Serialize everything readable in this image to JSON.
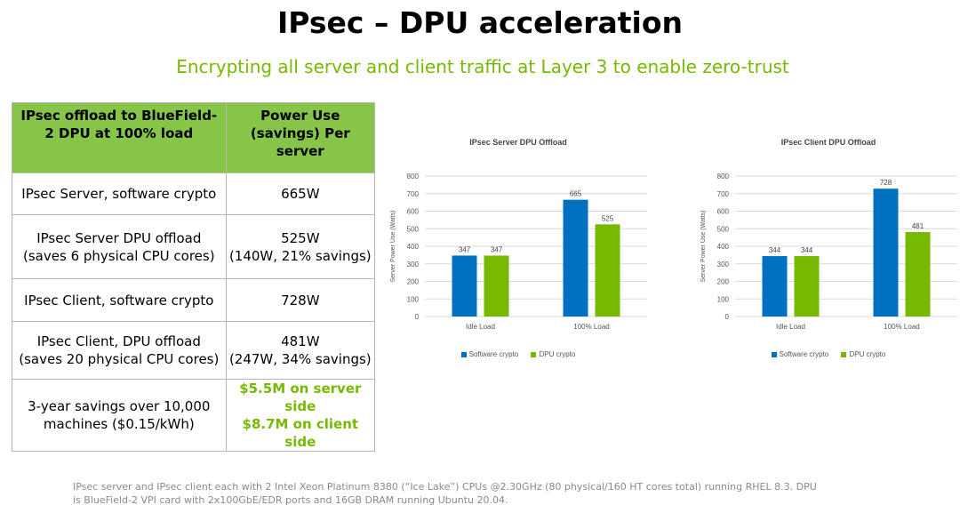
{
  "title": "IPsec – DPU acceleration",
  "subtitle": "Encrypting all server and client traffic at Layer 3 to enable zero-trust",
  "table": {
    "header_col1": "IPsec offload to BlueField-2 DPU at  100% load",
    "header_col2": "Power Use (savings) Per server",
    "rows": [
      {
        "label": "IPsec Server, software crypto",
        "value": "665W"
      },
      {
        "label_l1": "IPsec Server DPU offload",
        "label_l2": "(saves 6 physical CPU cores)",
        "value_l1": "525W",
        "value_l2": "(140W, 21% savings)"
      },
      {
        "label": "IPsec Client, software crypto",
        "value": "728W"
      },
      {
        "label_l1": "IPsec Client, DPU offload",
        "label_l2": "(saves 20 physical CPU cores)",
        "value_l1": "481W",
        "value_l2": "(247W, 34% savings)"
      },
      {
        "label_l1": "3-year savings over 10,000",
        "label_l2": "machines ($0.15/kWh)",
        "value_l1": "$5.5M on server side",
        "value_l2": "$8.7M on client side"
      }
    ]
  },
  "chart_data": [
    {
      "type": "bar",
      "title": "IPsec Server DPU Offload",
      "categories": [
        "Idle Load",
        "100% Load"
      ],
      "series": [
        {
          "name": "Software crypto",
          "values": [
            347,
            665
          ],
          "color": "#0070c0"
        },
        {
          "name": "DPU crypto",
          "values": [
            347,
            525
          ],
          "color": "#76b900"
        }
      ],
      "ylabel": "Server Power Use (Watts)",
      "ylim": [
        0,
        800
      ],
      "yticks": [
        0,
        100,
        200,
        300,
        400,
        500,
        600,
        700,
        800
      ],
      "legend": "bottom"
    },
    {
      "type": "bar",
      "title": "IPsec Client DPU Offload",
      "categories": [
        "Idle Load",
        "100% Load"
      ],
      "series": [
        {
          "name": "Software crypto",
          "values": [
            344,
            728
          ],
          "color": "#0070c0"
        },
        {
          "name": "DPU crypto",
          "values": [
            344,
            481
          ],
          "color": "#76b900"
        }
      ],
      "ylabel": "Server Power Use (Watts)",
      "ylim": [
        0,
        800
      ],
      "yticks": [
        0,
        100,
        200,
        300,
        400,
        500,
        600,
        700,
        800
      ],
      "legend": "bottom"
    }
  ],
  "footnote_l1": "IPsec server and IPsec client each with 2 Intel Xeon Platinum 8380 (“Ice Lake”) CPUs @2.30GHz (80 physical/160 HT cores total) running RHEL 8.3. DPU",
  "footnote_l2": "is BlueField-2 VPI card with 2x100GbE/EDR ports and 16GB DRAM running Ubuntu 20.04."
}
